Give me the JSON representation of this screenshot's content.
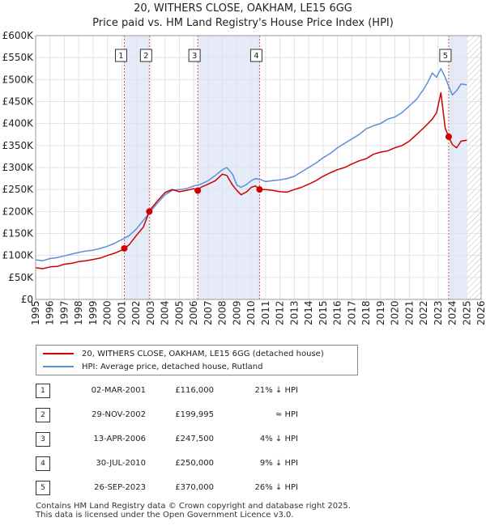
{
  "chart_data": {
    "type": "line",
    "title": "20, WITHERS CLOSE, OAKHAM, LE15 6GG",
    "subtitle": "Price paid vs. HM Land Registry's House Price Index (HPI)",
    "xlim": [
      1995,
      2026
    ],
    "ylim": [
      0,
      600000
    ],
    "x_ticks": [
      1995,
      1996,
      1997,
      1998,
      1999,
      2000,
      2001,
      2002,
      2003,
      2004,
      2005,
      2006,
      2007,
      2008,
      2009,
      2010,
      2011,
      2012,
      2013,
      2014,
      2015,
      2016,
      2017,
      2018,
      2019,
      2020,
      2021,
      2022,
      2023,
      2024,
      2025,
      2026
    ],
    "y_ticks": [
      {
        "value": 0,
        "label": "£0"
      },
      {
        "value": 50000,
        "label": "£50K"
      },
      {
        "value": 100000,
        "label": "£100K"
      },
      {
        "value": 150000,
        "label": "£150K"
      },
      {
        "value": 200000,
        "label": "£200K"
      },
      {
        "value": 250000,
        "label": "£250K"
      },
      {
        "value": 300000,
        "label": "£300K"
      },
      {
        "value": 350000,
        "label": "£350K"
      },
      {
        "value": 400000,
        "label": "£400K"
      },
      {
        "value": 450000,
        "label": "£450K"
      },
      {
        "value": 500000,
        "label": "£500K"
      },
      {
        "value": 550000,
        "label": "£550K"
      },
      {
        "value": 600000,
        "label": "£600K"
      }
    ],
    "shaded_ranges": [
      [
        2001.17,
        2002.91
      ],
      [
        2006.28,
        2010.58
      ],
      [
        2023.74,
        2025.0
      ]
    ],
    "hatched_range": [
      2025.0,
      2026.0
    ],
    "series": [
      {
        "name": "20, WITHERS CLOSE, OAKHAM, LE15 6GG (detached house)",
        "color": "#cc0000",
        "x": [
          1995.0,
          1995.5,
          1996.0,
          1996.5,
          1997.0,
          1997.5,
          1998.0,
          1998.5,
          1999.0,
          1999.5,
          2000.0,
          2000.5,
          2001.0,
          2001.17,
          2001.5,
          2002.0,
          2002.5,
          2002.91,
          2003.0,
          2003.5,
          2004.0,
          2004.5,
          2005.0,
          2005.5,
          2006.0,
          2006.28,
          2006.5,
          2007.0,
          2007.5,
          2008.0,
          2008.3,
          2008.7,
          2009.0,
          2009.3,
          2009.7,
          2010.0,
          2010.3,
          2010.58,
          2011.0,
          2011.5,
          2012.0,
          2012.5,
          2013.0,
          2013.5,
          2014.0,
          2014.5,
          2015.0,
          2015.5,
          2016.0,
          2016.5,
          2017.0,
          2017.5,
          2018.0,
          2018.5,
          2019.0,
          2019.5,
          2020.0,
          2020.5,
          2021.0,
          2021.5,
          2022.0,
          2022.3,
          2022.6,
          2022.9,
          2023.2,
          2023.5,
          2023.74,
          2024.0,
          2024.3,
          2024.6,
          2025.0
        ],
        "values": [
          72000,
          70000,
          74000,
          75000,
          80000,
          82000,
          86000,
          88000,
          91000,
          94000,
          100000,
          105000,
          112000,
          116000,
          124000,
          145000,
          165000,
          199995,
          205000,
          225000,
          243000,
          250000,
          245000,
          248000,
          252000,
          247500,
          255000,
          262000,
          270000,
          285000,
          282000,
          260000,
          248000,
          238000,
          245000,
          255000,
          258000,
          250000,
          250000,
          248000,
          245000,
          244000,
          250000,
          255000,
          262000,
          270000,
          280000,
          288000,
          295000,
          300000,
          308000,
          315000,
          320000,
          330000,
          335000,
          338000,
          345000,
          350000,
          360000,
          375000,
          390000,
          400000,
          410000,
          425000,
          470000,
          390000,
          370000,
          352000,
          345000,
          360000,
          362000
        ]
      },
      {
        "name": "HPI: Average price, detached house, Rutland",
        "color": "#5b8fd6",
        "x": [
          1995.0,
          1995.5,
          1996.0,
          1996.5,
          1997.0,
          1997.5,
          1998.0,
          1998.5,
          1999.0,
          1999.5,
          2000.0,
          2000.5,
          2001.0,
          2001.5,
          2002.0,
          2002.5,
          2003.0,
          2003.5,
          2004.0,
          2004.5,
          2005.0,
          2005.5,
          2006.0,
          2006.5,
          2007.0,
          2007.5,
          2008.0,
          2008.3,
          2008.7,
          2009.0,
          2009.3,
          2009.7,
          2010.0,
          2010.3,
          2010.7,
          2011.0,
          2011.5,
          2012.0,
          2012.5,
          2013.0,
          2013.5,
          2014.0,
          2014.5,
          2015.0,
          2015.5,
          2016.0,
          2016.5,
          2017.0,
          2017.5,
          2018.0,
          2018.5,
          2019.0,
          2019.5,
          2020.0,
          2020.5,
          2021.0,
          2021.5,
          2022.0,
          2022.3,
          2022.6,
          2022.9,
          2023.2,
          2023.5,
          2023.8,
          2024.0,
          2024.3,
          2024.6,
          2025.0
        ],
        "values": [
          90000,
          88000,
          93000,
          95000,
          99000,
          103000,
          107000,
          110000,
          112000,
          116000,
          121000,
          128000,
          136000,
          145000,
          160000,
          180000,
          200000,
          220000,
          238000,
          248000,
          250000,
          252000,
          258000,
          262000,
          270000,
          282000,
          295000,
          300000,
          285000,
          260000,
          255000,
          262000,
          270000,
          275000,
          272000,
          268000,
          270000,
          272000,
          275000,
          280000,
          290000,
          300000,
          310000,
          322000,
          332000,
          345000,
          355000,
          365000,
          375000,
          388000,
          395000,
          400000,
          410000,
          415000,
          425000,
          440000,
          455000,
          478000,
          495000,
          515000,
          505000,
          525000,
          505000,
          480000,
          465000,
          475000,
          490000,
          488000
        ]
      }
    ],
    "transactions": [
      {
        "num": "1",
        "x": 2001.17,
        "value": 116000
      },
      {
        "num": "2",
        "x": 2002.91,
        "value": 199995
      },
      {
        "num": "3",
        "x": 2006.28,
        "value": 247500
      },
      {
        "num": "4",
        "x": 2010.58,
        "value": 250000
      },
      {
        "num": "5",
        "x": 2023.74,
        "value": 370000
      }
    ]
  },
  "header": {
    "title": "20, WITHERS CLOSE, OAKHAM, LE15 6GG",
    "subtitle": "Price paid vs. HM Land Registry's House Price Index (HPI)"
  },
  "legend": {
    "items": [
      {
        "label": "20, WITHERS CLOSE, OAKHAM, LE15 6GG (detached house)",
        "color": "#cc0000"
      },
      {
        "label": "HPI: Average price, detached house, Rutland",
        "color": "#5b8fd6"
      }
    ]
  },
  "table": {
    "rows": [
      {
        "num": "1",
        "date": "02-MAR-2001",
        "price": "£116,000",
        "hpi": "21% ↓ HPI"
      },
      {
        "num": "2",
        "date": "29-NOV-2002",
        "price": "£199,995",
        "hpi": "≈ HPI"
      },
      {
        "num": "3",
        "date": "13-APR-2006",
        "price": "£247,500",
        "hpi": "4% ↓ HPI"
      },
      {
        "num": "4",
        "date": "30-JUL-2010",
        "price": "£250,000",
        "hpi": "9% ↓ HPI"
      },
      {
        "num": "5",
        "date": "26-SEP-2023",
        "price": "£370,000",
        "hpi": "26% ↓ HPI"
      }
    ]
  },
  "footer": {
    "line1": "Contains HM Land Registry data © Crown copyright and database right 2025.",
    "line2": "This data is licensed under the Open Government Licence v3.0."
  }
}
